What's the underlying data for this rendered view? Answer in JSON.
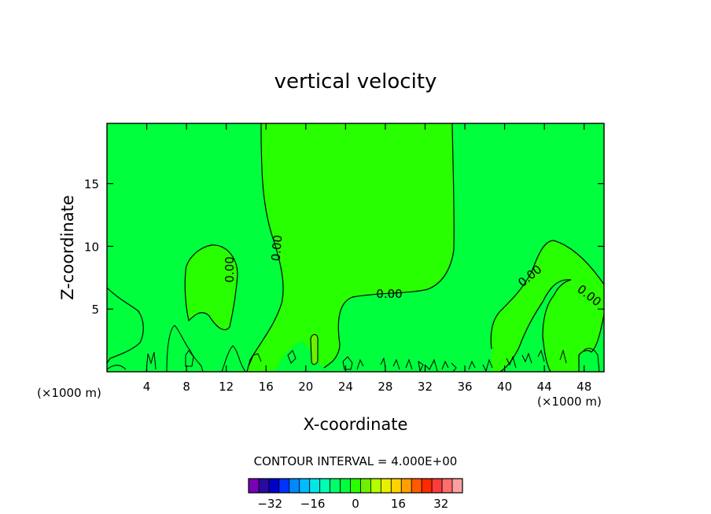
{
  "chart_data": {
    "type": "heatmap",
    "title": "vertical velocity",
    "xlabel": "X-coordinate",
    "ylabel": "Z-coordinate",
    "x_unit_left": "(×1000 m)",
    "x_unit_right": "(×1000 m)",
    "xlim": [
      0,
      50
    ],
    "ylim": [
      0,
      19.8
    ],
    "x_ticks": [
      4,
      8,
      12,
      16,
      20,
      24,
      28,
      32,
      36,
      40,
      44,
      48
    ],
    "y_ticks": [
      5,
      10,
      15
    ],
    "contour_labels": [
      "0.00",
      "0.00",
      "0.00",
      "0.00",
      "0.00"
    ],
    "contour_interval_text": "CONTOUR INTERVAL = 4.000E+00",
    "colorbar": {
      "colors": [
        "#7a00b4",
        "#2a0a9e",
        "#0000c8",
        "#0033ff",
        "#0088ff",
        "#00bbff",
        "#00e6e6",
        "#00ffb0",
        "#00ff6a",
        "#00ff3c",
        "#28ff00",
        "#6ef000",
        "#b4ff00",
        "#e6f000",
        "#ffd200",
        "#ffa000",
        "#ff5a00",
        "#ff2a00",
        "#ff3c3c",
        "#ff6e6e",
        "#ffa0a0"
      ],
      "tick_labels": [
        "−32",
        "−16",
        "0",
        "16",
        "32"
      ],
      "tick_values": [
        -32,
        -16,
        0,
        16,
        32
      ],
      "range": [
        -40,
        40
      ]
    },
    "fill_colors": {
      "negative": "#00ff3c",
      "positive": "#28ff00",
      "small_positive": "#6ef000"
    }
  }
}
